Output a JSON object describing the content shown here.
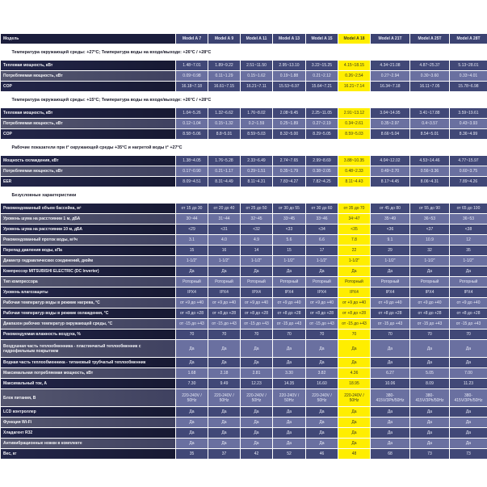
{
  "header": {
    "label": "Модель",
    "models": [
      "Model A 7",
      "Model A 9",
      "Model A 11",
      "Model A 13",
      "Model A 15",
      "Model A 18",
      "Model A 21T",
      "Model A 25T",
      "Model A 28T"
    ],
    "highlight_model": "Model A 18"
  },
  "colors": {
    "highlight": "#ffee00",
    "label_dark": "#1b1d3c",
    "cell_dark": "#414877",
    "cell_light": "#6a70a0"
  },
  "sections": [
    {
      "title": "Температура окружающей среды: +27°C; Температура воды на входе/выходе: +26°C / +28°C",
      "rows": [
        {
          "label": "Тепловая мощность, кВт",
          "values": [
            "1.48~7.01",
            "1.89~9.22",
            "2.51~11.50",
            "2.95~13.10",
            "3.22~15.25",
            "4.15~18.15",
            "4.34~21.08",
            "4.87~25.37",
            "5.13~28.01"
          ]
        },
        {
          "label": "Потребляемая мощность, кВт",
          "values": [
            "0.09~0.98",
            "0.11~1.29",
            "0.15~1.62",
            "0.19~1.88",
            "0.21~2.12",
            "0.26~2.54",
            "0.27~2.94",
            "0.30~3.60",
            "0.33~4.01"
          ]
        },
        {
          "label": "COP",
          "values": [
            "16.18~7.18",
            "16.61~7.15",
            "16.21~7.11",
            "15.53~6.97",
            "15.64~7.21",
            "16.21~7.14",
            "16.34~7.18",
            "16.11~7.05",
            "15.78~6.98"
          ]
        }
      ]
    },
    {
      "title": "Температура окружающей среды: +15°C; Температура воды на входе/выходе: +26°C / +28°C",
      "rows": [
        {
          "label": "Тепловая мощность, кВт",
          "values": [
            "1.04~5.26",
            "1.32~6.62",
            "1.76~8.02",
            "2.08~9.45",
            "2.25~11.05",
            "2.91~13.12",
            "3.04~14.95",
            "3.41~17.88",
            "3.59~19.61"
          ]
        },
        {
          "label": "Потребляемая мощность, кВт",
          "values": [
            "0.12~1.04",
            "0.15~1.32",
            "0.2~1.59",
            "0.25~1.89",
            "0.27~2.19",
            "0.34~2.61",
            "0.35~2.97",
            "0.4~3.57",
            "0.43~3.93"
          ]
        },
        {
          "label": "COP",
          "values": [
            "8.58~5.06",
            "8.8~5.01",
            "8.59~5.03",
            "8.32~5.00",
            "8.29~5.05",
            "8.59~5.03",
            "8.66~5.04",
            "8.54~5.01",
            "8.36~4.99"
          ]
        }
      ]
    },
    {
      "title": "Рабочие показатели при t° окружающей среды +35°C и нагретой воды t° +27°C",
      "rows": [
        {
          "label": "Мощность охлаждения, кВт",
          "values": [
            "1.38~4.05",
            "1.76~5.28",
            "2.33~6.49",
            "2.74~7.65",
            "2.99~8.69",
            "3.88~10.35",
            "4.04~12.02",
            "4.53~14.46",
            "4.77~15.97"
          ]
        },
        {
          "label": "Потребляемая мощность, кВт",
          "values": [
            "0.17~0.90",
            "0.21~1.17",
            "0.29~1.51",
            "0.35~1.79",
            "0.38~2.05",
            "0.48~2.33",
            "0.49~2.70",
            "0.56~3.36",
            "0.60~3.75"
          ]
        },
        {
          "label": "EER",
          "values": [
            "8.09~4.51",
            "8.31~4.49",
            "8.11~4.31",
            "7.83~4.27",
            "7.82~4.25",
            "8.11~4.43",
            "8.17~4.45",
            "8.06~4.31",
            "7.89~4.26"
          ]
        }
      ]
    },
    {
      "title": "Безусловные характеристики",
      "rows": [
        {
          "label": "Рекомендованный объем бассейна, м³",
          "values": [
            "от 15 до 30",
            "от 20 до 40",
            "от 25 до 50",
            "от 30 до 55",
            "от 30 до 60",
            "от 35 до 70",
            "от 45 до 80",
            "от 55 до 90",
            "от 65 до 100"
          ]
        },
        {
          "label": "Уровень шума на расстоянии 1 м, дБА",
          "values": [
            "30~44",
            "31~44",
            "32~45",
            "33~45",
            "33~46",
            "34~47",
            "35~49",
            "36~53",
            "36~53"
          ]
        },
        {
          "label": "Уровень шума на расстоянии 10 м, дБА",
          "values": [
            "<29",
            "<31",
            "<32",
            "<33",
            "<34",
            "<35",
            "<36",
            "<37",
            "<38"
          ]
        },
        {
          "label": "Рекомендованный проток воды, м³/ч",
          "values": [
            "3.1",
            "4.0",
            "4.9",
            "5.6",
            "6.6",
            "7.8",
            "9.1",
            "10.9",
            "12"
          ]
        },
        {
          "label": "Перепад давления воды, кПа",
          "values": [
            "15",
            "16",
            "14",
            "15",
            "17",
            "22",
            "29",
            "32",
            "35"
          ]
        },
        {
          "label": "Диаметр гидравлических соединений, дюйм",
          "values": [
            "1-1/2\"",
            "1-1/2\"",
            "1-1/2\"",
            "1-1/2\"",
            "1-1/2\"",
            "1-1/2\"",
            "1-1/2\"",
            "1-1/2\"",
            "1-1/2\""
          ]
        },
        {
          "label": "Компрессор MITSUBISHI ELECTRIC (DC Inverter)",
          "values": [
            "Да",
            "Да",
            "Да",
            "Да",
            "Да",
            "Да",
            "Да",
            "Да",
            "Да"
          ]
        },
        {
          "label": "Тип компрессора",
          "values": [
            "Роторный",
            "Роторный",
            "Роторный",
            "Роторный",
            "Роторный",
            "Роторный",
            "Роторный",
            "Роторный",
            "Роторный"
          ]
        },
        {
          "label": "Уровень влагозащиты",
          "values": [
            "IPX4",
            "IPX4",
            "IPX4",
            "IPX4",
            "IPX4",
            "IPX4",
            "IPX4",
            "IPX4",
            "IPX4"
          ]
        },
        {
          "label": "Рабочая температур воды в режиме нагрева, °C",
          "values": [
            "от +9 до +40",
            "от +9 до +40",
            "от +9 до +40",
            "от +9 до +40",
            "от +9 до +40",
            "от +9 до +40",
            "от +9 до +40",
            "от +9 до +40",
            "от +9 до +40"
          ]
        },
        {
          "label": "Рабочая температур воды в режиме охлаждения, °C",
          "values": [
            "от +8 до +28",
            "от +8 до +28",
            "от +8 до +28",
            "от +8 до +28",
            "от +8 до +28",
            "от +8 до +28",
            "от +8 до +28",
            "от +8 до +28",
            "от +8 до +28"
          ]
        },
        {
          "label": "Диапазон рабочих температур окружающей среды, °C",
          "values": [
            "от -15 до +43",
            "от -15 до +43",
            "от -15 до +43",
            "от -15 до +43",
            "от -15 до +43",
            "от -15 до +43",
            "от -15 до +43",
            "от -15 до +43",
            "от -15 до +43"
          ]
        },
        {
          "label": "Рекомендуемая влажность воздуха, %",
          "values": [
            "70",
            "70",
            "70",
            "70",
            "70",
            "70",
            "70",
            "70",
            "70"
          ]
        },
        {
          "label": "Воздушная часть теплообменника - пластинчатый теплообменник с гидрофильным покрытием",
          "double": true,
          "values": [
            "Да",
            "Да",
            "Да",
            "Да",
            "Да",
            "Да",
            "Да",
            "Да",
            "Да"
          ]
        },
        {
          "label": "Водная часть теплообменника - титановый трубчатый теплообменник",
          "values": [
            "Да",
            "Да",
            "Да",
            "Да",
            "Да",
            "Да",
            "Да",
            "Да",
            "Да"
          ]
        },
        {
          "label": "Максимальная потребляемая мощность, кВт",
          "values": [
            "1.68",
            "2.18",
            "2.81",
            "3.30",
            "3.82",
            "4.36",
            "6.27",
            "5.05",
            "7.00"
          ]
        },
        {
          "label": "Максимальный ток, А",
          "values": [
            "7.30",
            "9.49",
            "12.23",
            "14.35",
            "16.60",
            "18.95",
            "10.06",
            "8.09",
            "11.23"
          ]
        },
        {
          "label": "Блок питания, В",
          "double": true,
          "values": [
            "220-240V / 50Hz",
            "220-240V / 50Hz",
            "220-240V / 50Hz",
            "220-240V / 50Hz",
            "220-240V / 50Hz",
            "220-240V / 50Hz",
            "380-415V/3Ph/50Hz",
            "380-415V/3Ph/50Hz",
            "380-415V/3Ph/50Hz"
          ]
        },
        {
          "label": "LCD контроллер",
          "values": [
            "Да",
            "Да",
            "Да",
            "Да",
            "Да",
            "Да",
            "Да",
            "Да",
            "Да"
          ]
        },
        {
          "label": "Функция Wi-Fi",
          "values": [
            "Да",
            "Да",
            "Да",
            "Да",
            "Да",
            "Да",
            "Да",
            "Да",
            "Да"
          ]
        },
        {
          "label": "Хладагент R32",
          "values": [
            "Да",
            "Да",
            "Да",
            "Да",
            "Да",
            "Да",
            "Да",
            "Да",
            "Да"
          ]
        },
        {
          "label": "Антивибрационные ножки в комплекте",
          "values": [
            "Да",
            "Да",
            "Да",
            "Да",
            "Да",
            "Да",
            "Да",
            "Да",
            "Да"
          ]
        },
        {
          "label": "Вес, кг",
          "values": [
            "35",
            "37",
            "42",
            "52",
            "46",
            "48",
            "68",
            "73",
            "73"
          ]
        }
      ]
    }
  ]
}
